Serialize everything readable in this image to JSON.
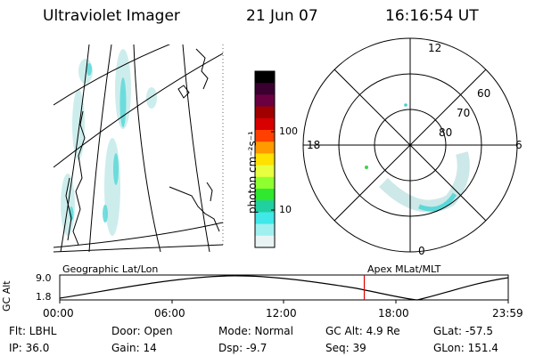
{
  "header": {
    "instrument": "Ultraviolet Imager",
    "date": "21 Jun 07",
    "time": "16:16:54 UT"
  },
  "colorbar": {
    "label": "photon cm⁻²s⁻¹",
    "ticks": [
      "100",
      "10"
    ],
    "colors": [
      "#000000",
      "#3a0030",
      "#6a0040",
      "#a00000",
      "#d80000",
      "#ff4000",
      "#ff9a00",
      "#ffe000",
      "#e8ff40",
      "#90ff30",
      "#30e830",
      "#20d0a0",
      "#40e8e8",
      "#a0f0f0",
      "#e8f4f4"
    ]
  },
  "polar_plot": {
    "mlt_labels": {
      "top": "12",
      "right": "6",
      "bottom": "0",
      "left": "18"
    },
    "lat_labels": [
      "60",
      "70",
      "80"
    ]
  },
  "altitude_panel": {
    "left_title": "Geographic Lat/Lon",
    "right_title": "Apex MLat/MLT",
    "ylabel": "GC Alt",
    "yticks": [
      "9.0",
      "1.8"
    ],
    "xticks": [
      "00:00",
      "06:00",
      "12:00",
      "18:00",
      "23:59"
    ],
    "current_time_fraction": 0.679
  },
  "info": {
    "filter": "Flt: LBHL",
    "ip": "IP: 36.0",
    "door": "Door: Open",
    "gain": "Gain: 14",
    "mode": "Mode: Normal",
    "dsp": "Dsp:    -9.7",
    "gc_alt": "GC Alt: 4.9 Re",
    "seq": "Seq: 39",
    "glat": "GLat: -57.5",
    "glon": "GLon: 151.4"
  }
}
